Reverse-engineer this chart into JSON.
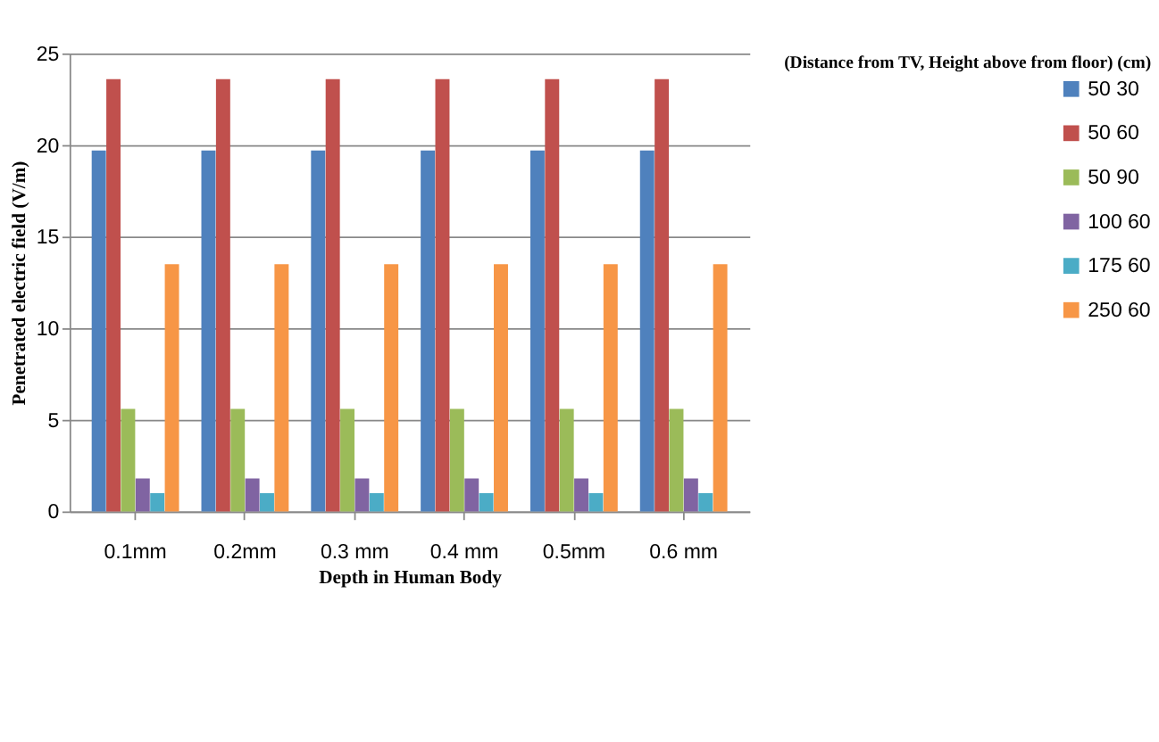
{
  "chart_data": {
    "type": "bar",
    "xlabel": "Depth in Human Body",
    "ylabel": "Penetrated electric field (V/m)",
    "legend_title": "(Distance from TV, Height above from floor)  (cm)",
    "categories": [
      "0.1mm",
      "0.2mm",
      "0.3 mm",
      "0.4 mm",
      "0.5mm",
      "0.6 mm"
    ],
    "series": [
      {
        "name": "50 30",
        "color": "#4f81bd",
        "values": [
          19.7,
          19.7,
          19.7,
          19.7,
          19.7,
          19.7
        ]
      },
      {
        "name": "50 60",
        "color": "#c0504d",
        "values": [
          23.6,
          23.6,
          23.6,
          23.6,
          23.6,
          23.6
        ]
      },
      {
        "name": "50 90",
        "color": "#9bbb59",
        "values": [
          5.6,
          5.6,
          5.6,
          5.6,
          5.6,
          5.6
        ]
      },
      {
        "name": "100 60",
        "color": "#8064a2",
        "values": [
          1.8,
          1.8,
          1.8,
          1.8,
          1.8,
          1.8
        ]
      },
      {
        "name": "175 60",
        "color": "#4bacc6",
        "values": [
          1.0,
          1.0,
          1.0,
          1.0,
          1.0,
          1.0
        ]
      },
      {
        "name": "250 60",
        "color": "#f79646",
        "values": [
          13.5,
          13.5,
          13.5,
          13.5,
          13.5,
          13.5
        ]
      }
    ],
    "ylim": [
      0,
      25
    ],
    "yticks": [
      0,
      5,
      10,
      15,
      20,
      25
    ],
    "grid": "y",
    "legend": "right"
  }
}
